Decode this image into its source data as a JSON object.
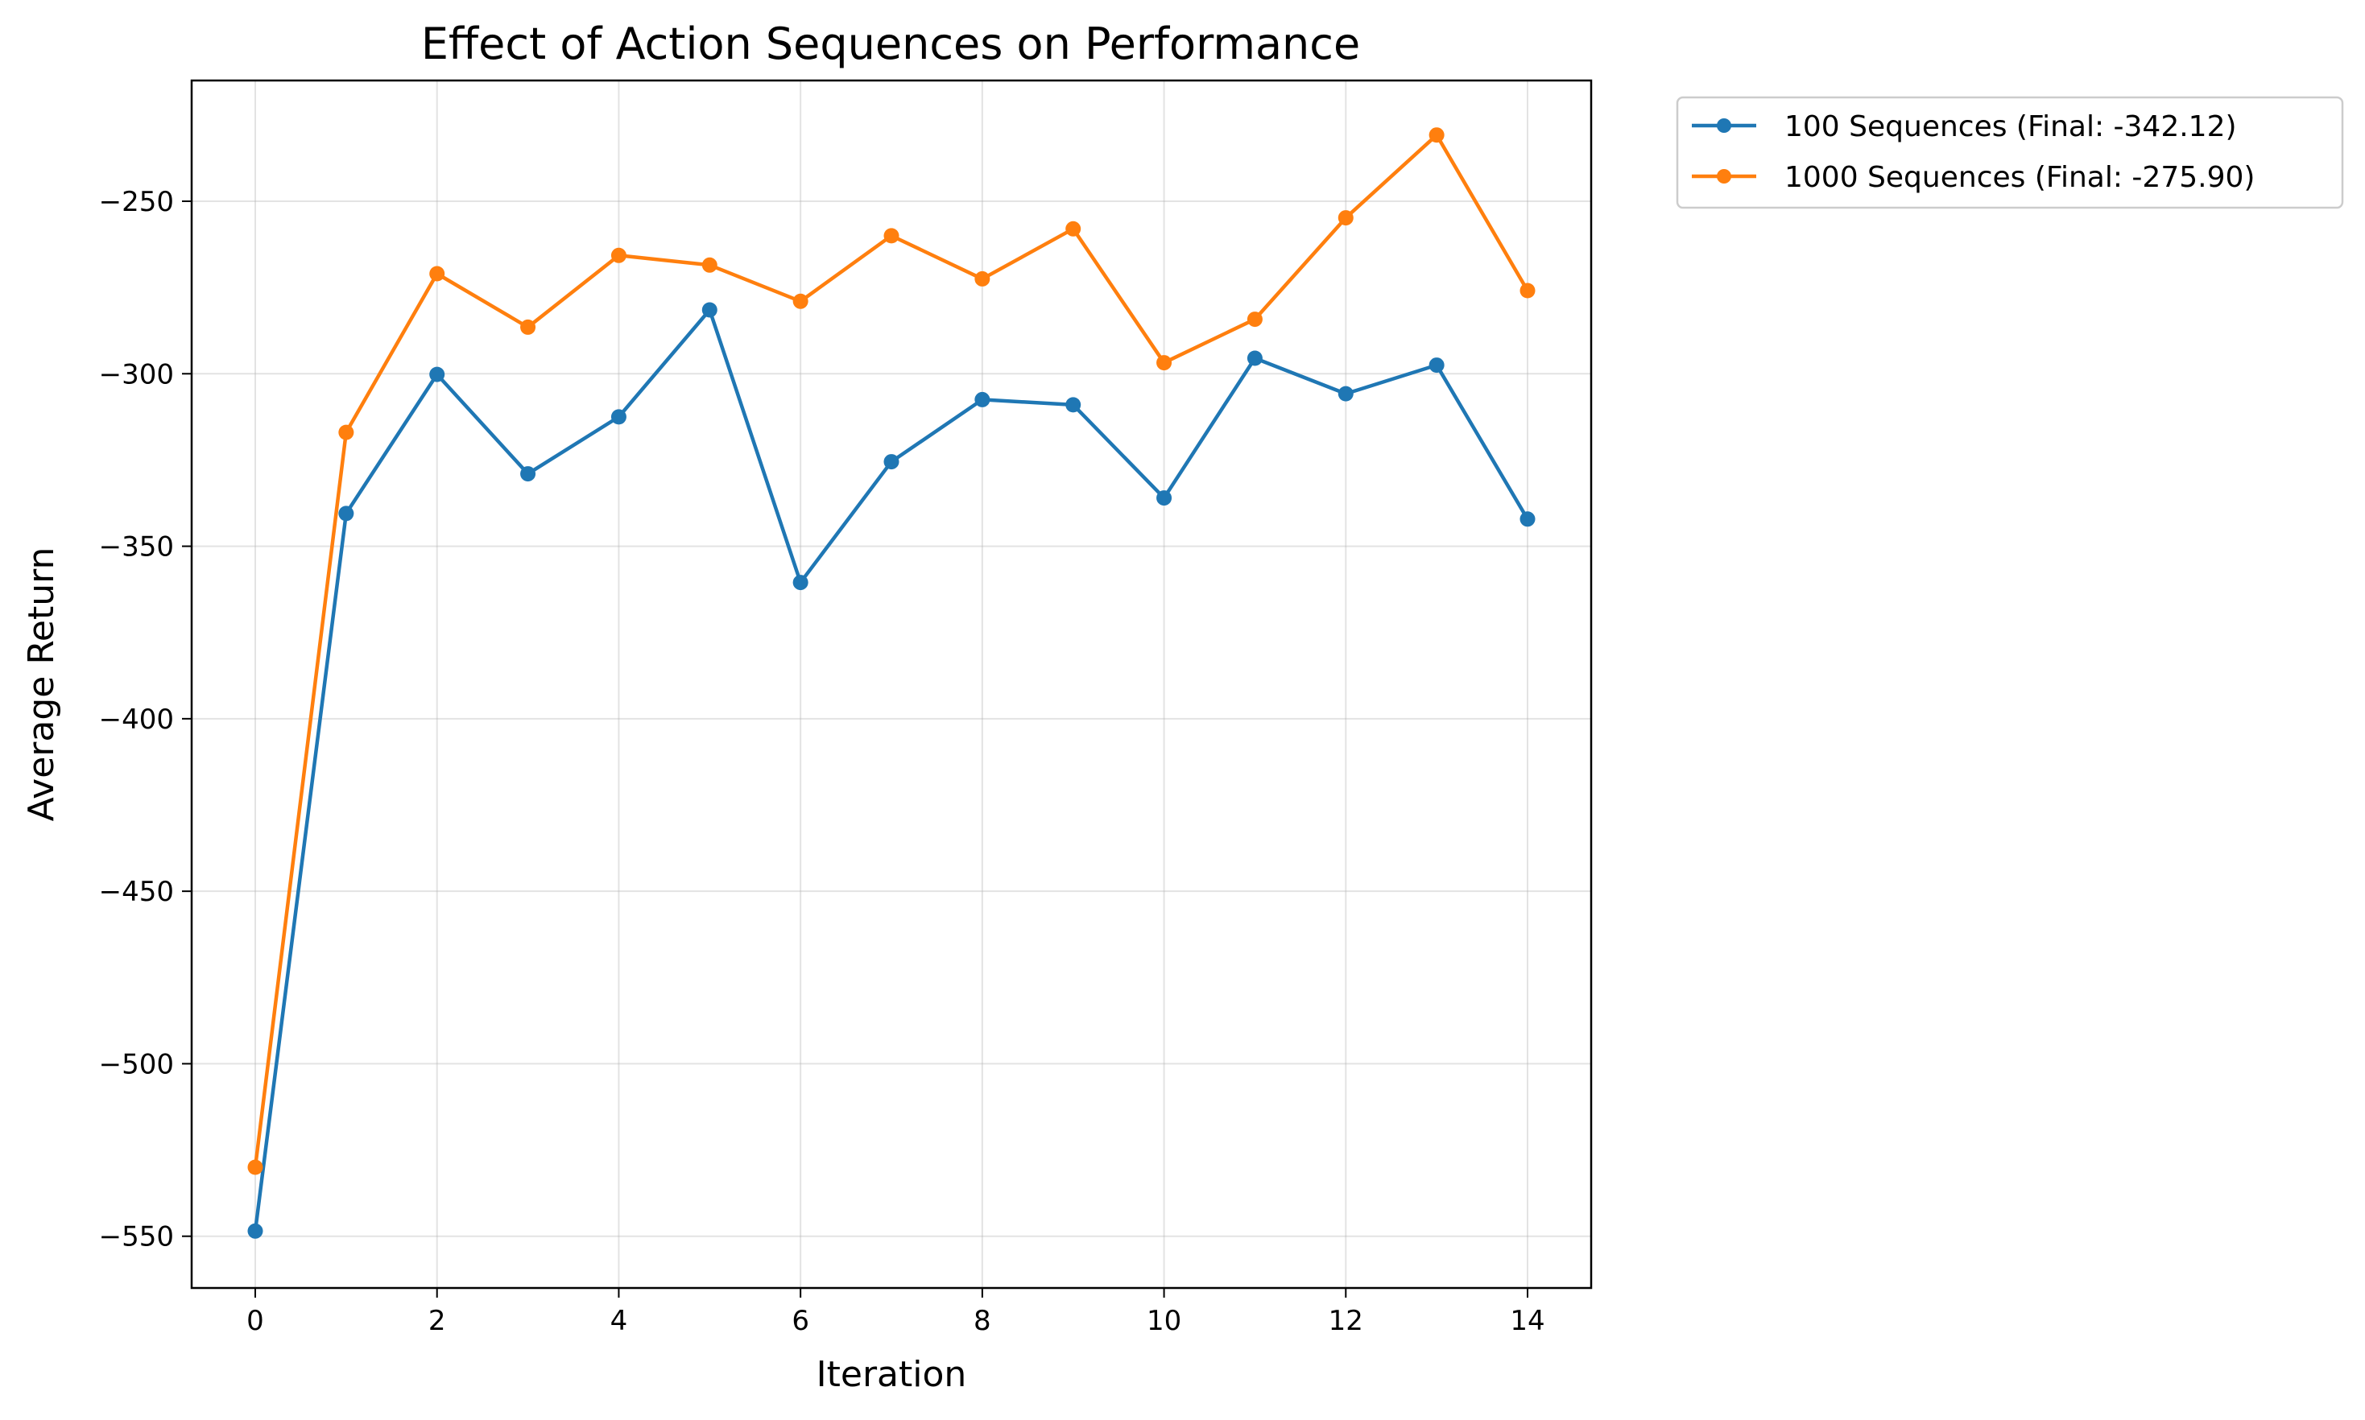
{
  "chart_data": {
    "type": "line",
    "title": "Effect of Action Sequences on Performance",
    "xlabel": "Iteration",
    "ylabel": "Average Return",
    "x": [
      0,
      1,
      2,
      3,
      4,
      5,
      6,
      7,
      8,
      9,
      10,
      11,
      12,
      13,
      14
    ],
    "xlim": [
      -0.7,
      14.7
    ],
    "ylim": [
      -565,
      -215
    ],
    "xticks": [
      0,
      2,
      4,
      6,
      8,
      10,
      12,
      14
    ],
    "yticks": [
      -550,
      -500,
      -450,
      -400,
      -350,
      -300,
      -250
    ],
    "xtick_labels": [
      "0",
      "2",
      "4",
      "6",
      "8",
      "10",
      "12",
      "14"
    ],
    "ytick_labels": [
      "−550",
      "−500",
      "−450",
      "−400",
      "−350",
      "−300",
      "−250"
    ],
    "grid": true,
    "legend_placement": "outside-top-right",
    "series": [
      {
        "name": "100 Sequences (Final: -342.12)",
        "color": "#1f77b4",
        "marker": "circle",
        "values": [
          -548.5,
          -340.5,
          -300.2,
          -329.0,
          -312.5,
          -281.5,
          -360.5,
          -325.5,
          -307.5,
          -309.0,
          -336.0,
          -295.5,
          -305.8,
          -297.5,
          -342.12
        ]
      },
      {
        "name": "1000 Sequences (Final: -275.90)",
        "color": "#ff7f0e",
        "marker": "circle",
        "values": [
          -530.0,
          -317.0,
          -271.0,
          -286.5,
          -265.7,
          -268.5,
          -279.0,
          -260.0,
          -272.5,
          -258.0,
          -296.8,
          -284.2,
          -254.8,
          -230.8,
          -275.9
        ]
      }
    ]
  }
}
